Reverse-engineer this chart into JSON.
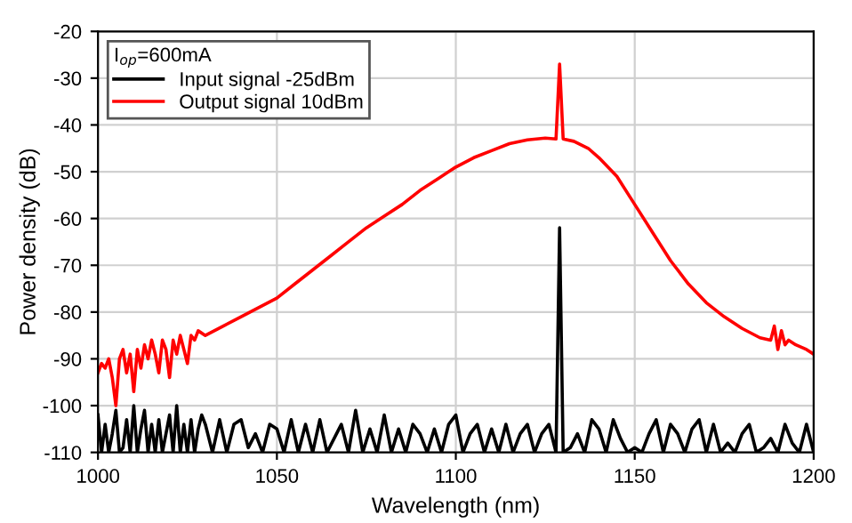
{
  "chart_data": {
    "type": "line",
    "xlabel": "Wavelength (nm)",
    "ylabel": "Power density (dB)",
    "legend_title": "I$_{op}$=600mA",
    "xlim": [
      1000,
      1200
    ],
    "ylim": [
      -110,
      -20
    ],
    "xticks": [
      1000,
      1050,
      1100,
      1150,
      1200
    ],
    "yticks": [
      -110,
      -100,
      -90,
      -80,
      -70,
      -60,
      -50,
      -40,
      -30,
      -20
    ],
    "grid": true,
    "legend": "top left",
    "series": [
      {
        "name": "Input signal -25dBm",
        "color": "#000000",
        "x": [
          1000,
          1001,
          1002,
          1003,
          1004,
          1005,
          1006,
          1007,
          1008,
          1009,
          1010,
          1011,
          1012,
          1013,
          1014,
          1015,
          1016,
          1017,
          1018,
          1019,
          1020,
          1021,
          1022,
          1023,
          1024,
          1025,
          1026,
          1027,
          1028,
          1029,
          1030,
          1032,
          1034,
          1036,
          1038,
          1040,
          1042,
          1044,
          1046,
          1048,
          1050,
          1052,
          1054,
          1056,
          1058,
          1060,
          1062,
          1064,
          1066,
          1068,
          1070,
          1072,
          1074,
          1076,
          1078,
          1080,
          1082,
          1084,
          1086,
          1088,
          1090,
          1092,
          1094,
          1096,
          1098,
          1100,
          1102,
          1104,
          1106,
          1108,
          1110,
          1112,
          1114,
          1116,
          1118,
          1120,
          1122,
          1124,
          1126,
          1128,
          1129,
          1130,
          1132,
          1134,
          1136,
          1138,
          1140,
          1142,
          1144,
          1146,
          1148,
          1150,
          1152,
          1154,
          1156,
          1158,
          1160,
          1162,
          1164,
          1166,
          1168,
          1170,
          1172,
          1174,
          1176,
          1178,
          1180,
          1182,
          1184,
          1186,
          1188,
          1190,
          1192,
          1194,
          1196,
          1198,
          1200
        ],
        "values": [
          -102,
          -110,
          -104,
          -110,
          -106,
          -101,
          -110,
          -109,
          -103,
          -110,
          -100,
          -110,
          -105,
          -101,
          -110,
          -104,
          -110,
          -103,
          -110,
          -106,
          -102,
          -110,
          -100,
          -110,
          -104,
          -110,
          -103,
          -110,
          -105,
          -102,
          -104,
          -110,
          -103,
          -110,
          -104,
          -103,
          -109,
          -106,
          -110,
          -104,
          -105,
          -110,
          -103,
          -110,
          -104,
          -110,
          -103,
          -110,
          -107,
          -104,
          -110,
          -101,
          -110,
          -105,
          -110,
          -102,
          -110,
          -105,
          -110,
          -104,
          -106,
          -110,
          -105,
          -110,
          -104,
          -102,
          -110,
          -106,
          -104,
          -110,
          -105,
          -110,
          -104,
          -110,
          -106,
          -104,
          -110,
          -106,
          -104,
          -110,
          -62,
          -110,
          -109,
          -106,
          -110,
          -103,
          -105,
          -110,
          -103,
          -107,
          -110,
          -109,
          -110,
          -106,
          -103,
          -110,
          -104,
          -106,
          -110,
          -105,
          -103,
          -110,
          -104,
          -110,
          -108,
          -110,
          -106,
          -104,
          -110,
          -109,
          -107,
          -110,
          -104,
          -108,
          -110,
          -104,
          -110
        ]
      },
      {
        "name": "Output signal 10dBm",
        "color": "#ff0000",
        "x": [
          1000,
          1001,
          1002,
          1003,
          1004,
          1005,
          1006,
          1007,
          1008,
          1009,
          1010,
          1011,
          1012,
          1013,
          1014,
          1015,
          1016,
          1017,
          1018,
          1019,
          1020,
          1021,
          1022,
          1023,
          1024,
          1025,
          1026,
          1027,
          1028,
          1030,
          1035,
          1040,
          1045,
          1050,
          1055,
          1060,
          1065,
          1070,
          1075,
          1080,
          1085,
          1090,
          1095,
          1100,
          1105,
          1110,
          1115,
          1120,
          1125,
          1128,
          1129,
          1130,
          1133,
          1137,
          1140,
          1145,
          1150,
          1155,
          1160,
          1165,
          1170,
          1175,
          1180,
          1185,
          1188,
          1189,
          1190,
          1191,
          1192,
          1193,
          1195,
          1198,
          1200
        ],
        "values": [
          -93,
          -91,
          -92,
          -90,
          -94,
          -100,
          -90,
          -88,
          -93,
          -89,
          -97,
          -88,
          -92,
          -87,
          -90,
          -86,
          -89,
          -93,
          -86,
          -88,
          -94,
          -86,
          -89,
          -85,
          -88,
          -91,
          -85,
          -86,
          -84,
          -85,
          -83,
          -81,
          -79,
          -77,
          -74,
          -71,
          -68,
          -65,
          -62,
          -59.5,
          -57,
          -54,
          -51.5,
          -49,
          -47,
          -45.5,
          -44,
          -43.2,
          -42.8,
          -43,
          -27,
          -43,
          -43.5,
          -45,
          -47,
          -51,
          -57,
          -63,
          -69,
          -74,
          -78,
          -81,
          -83.5,
          -85.5,
          -86,
          -83,
          -88,
          -84,
          -87,
          -86,
          -87,
          -88,
          -89
        ]
      }
    ]
  }
}
